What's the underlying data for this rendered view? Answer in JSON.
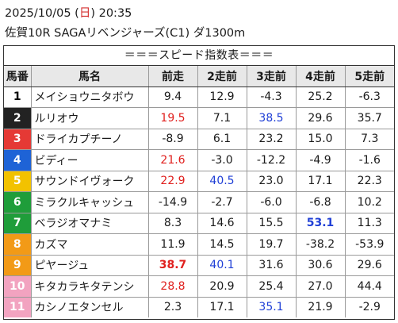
{
  "header": {
    "date_prefix": "2025/10/05 (",
    "weekday": "日",
    "time_suffix": ") 20:35",
    "race_info": "佐賀10R SAGAリベンジャーズ(C1) ダ1300m"
  },
  "table": {
    "title": "＝＝＝スピード指数表＝＝＝",
    "headers": [
      "馬番",
      "馬名",
      "前走",
      "2走前",
      "3走前",
      "4走前",
      "5走前"
    ],
    "rows": [
      {
        "num": "1",
        "name": "メイショウニタボウ",
        "bg": "#ffffff",
        "fg": "#000000",
        "vals": [
          {
            "v": "9.4",
            "s": ""
          },
          {
            "v": "12.9",
            "s": ""
          },
          {
            "v": "-4.3",
            "s": ""
          },
          {
            "v": "25.2",
            "s": ""
          },
          {
            "v": "-6.3",
            "s": ""
          }
        ]
      },
      {
        "num": "2",
        "name": "ルリオウ",
        "bg": "#222222",
        "fg": "#ffffff",
        "vals": [
          {
            "v": "19.5",
            "s": "red"
          },
          {
            "v": "7.1",
            "s": ""
          },
          {
            "v": "38.5",
            "s": "blue"
          },
          {
            "v": "29.6",
            "s": ""
          },
          {
            "v": "35.7",
            "s": ""
          }
        ]
      },
      {
        "num": "3",
        "name": "ドライカプチーノ",
        "bg": "#e53935",
        "fg": "#ffffff",
        "vals": [
          {
            "v": "-8.9",
            "s": ""
          },
          {
            "v": "6.1",
            "s": ""
          },
          {
            "v": "23.2",
            "s": ""
          },
          {
            "v": "15.0",
            "s": ""
          },
          {
            "v": "7.3",
            "s": ""
          }
        ]
      },
      {
        "num": "4",
        "name": "ビディー",
        "bg": "#1e63d6",
        "fg": "#ffffff",
        "vals": [
          {
            "v": "21.6",
            "s": "red"
          },
          {
            "v": "-3.0",
            "s": ""
          },
          {
            "v": "-12.2",
            "s": ""
          },
          {
            "v": "-4.9",
            "s": ""
          },
          {
            "v": "-1.6",
            "s": ""
          }
        ]
      },
      {
        "num": "5",
        "name": "サウンドイヴォーク",
        "bg": "#f2c200",
        "fg": "#ffffff",
        "vals": [
          {
            "v": "22.9",
            "s": "red"
          },
          {
            "v": "40.5",
            "s": "blue"
          },
          {
            "v": "23.0",
            "s": ""
          },
          {
            "v": "17.1",
            "s": ""
          },
          {
            "v": "22.3",
            "s": ""
          }
        ]
      },
      {
        "num": "6",
        "name": "ミラクルキャッシュ",
        "bg": "#1f9d3a",
        "fg": "#ffffff",
        "vals": [
          {
            "v": "-14.9",
            "s": ""
          },
          {
            "v": "-2.7",
            "s": ""
          },
          {
            "v": "-6.0",
            "s": ""
          },
          {
            "v": "-6.8",
            "s": ""
          },
          {
            "v": "10.2",
            "s": ""
          }
        ]
      },
      {
        "num": "7",
        "name": "ベラジオマナミ",
        "bg": "#1f9d3a",
        "fg": "#ffffff",
        "vals": [
          {
            "v": "8.3",
            "s": ""
          },
          {
            "v": "14.6",
            "s": ""
          },
          {
            "v": "15.5",
            "s": ""
          },
          {
            "v": "53.1",
            "s": "blue bold"
          },
          {
            "v": "11.3",
            "s": ""
          }
        ]
      },
      {
        "num": "8",
        "name": "カズマ",
        "bg": "#f29a17",
        "fg": "#ffffff",
        "vals": [
          {
            "v": "11.9",
            "s": ""
          },
          {
            "v": "14.5",
            "s": ""
          },
          {
            "v": "19.7",
            "s": ""
          },
          {
            "v": "-38.2",
            "s": ""
          },
          {
            "v": "-53.9",
            "s": ""
          }
        ]
      },
      {
        "num": "9",
        "name": "ピヤージュ",
        "bg": "#f29a17",
        "fg": "#ffffff",
        "vals": [
          {
            "v": "38.7",
            "s": "red bold"
          },
          {
            "v": "40.1",
            "s": "blue"
          },
          {
            "v": "31.6",
            "s": ""
          },
          {
            "v": "30.6",
            "s": ""
          },
          {
            "v": "29.6",
            "s": ""
          }
        ]
      },
      {
        "num": "10",
        "name": "キタカラキタテンシ",
        "bg": "#f2a3c0",
        "fg": "#ffffff",
        "vals": [
          {
            "v": "28.8",
            "s": "red"
          },
          {
            "v": "20.9",
            "s": ""
          },
          {
            "v": "25.4",
            "s": ""
          },
          {
            "v": "27.0",
            "s": ""
          },
          {
            "v": "44.4",
            "s": ""
          }
        ]
      },
      {
        "num": "11",
        "name": "カシノエタンセル",
        "bg": "#f2a3c0",
        "fg": "#ffffff",
        "vals": [
          {
            "v": "2.3",
            "s": ""
          },
          {
            "v": "17.1",
            "s": ""
          },
          {
            "v": "35.1",
            "s": "blue"
          },
          {
            "v": "21.9",
            "s": ""
          },
          {
            "v": "-2.9",
            "s": ""
          }
        ]
      }
    ]
  }
}
